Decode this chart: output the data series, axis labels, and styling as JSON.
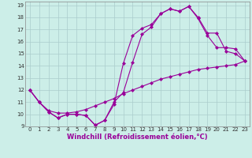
{
  "xlabel": "Windchill (Refroidissement éolien,°C)",
  "bg_color": "#cceee8",
  "grid_color": "#aacccc",
  "line_color": "#990099",
  "xlim": [
    -0.5,
    23.5
  ],
  "ylim": [
    9,
    19.3
  ],
  "xticks": [
    0,
    1,
    2,
    3,
    4,
    5,
    6,
    7,
    8,
    9,
    10,
    11,
    12,
    13,
    14,
    15,
    16,
    17,
    18,
    19,
    20,
    21,
    22,
    23
  ],
  "yticks": [
    9,
    10,
    11,
    12,
    13,
    14,
    15,
    16,
    17,
    18,
    19
  ],
  "line1_x": [
    0,
    1,
    2,
    3,
    4,
    5,
    6,
    7,
    8,
    9,
    10,
    11,
    12,
    13,
    14,
    15,
    16,
    17,
    18,
    19,
    20,
    21,
    22,
    23
  ],
  "line1_y": [
    12.0,
    11.0,
    10.2,
    9.7,
    10.0,
    10.0,
    9.9,
    9.1,
    9.5,
    11.0,
    11.8,
    14.3,
    16.6,
    17.2,
    18.3,
    18.7,
    18.5,
    18.9,
    18.0,
    16.7,
    16.7,
    15.2,
    15.0,
    14.4
  ],
  "line2_x": [
    0,
    1,
    2,
    3,
    4,
    5,
    6,
    7,
    8,
    9,
    10,
    11,
    12,
    13,
    14,
    15,
    16,
    17,
    18,
    19,
    20,
    21,
    22,
    23
  ],
  "line2_y": [
    12.0,
    11.0,
    10.2,
    9.7,
    10.0,
    10.0,
    9.9,
    9.1,
    9.5,
    10.8,
    14.2,
    16.5,
    17.1,
    17.4,
    18.3,
    18.7,
    18.5,
    18.9,
    17.9,
    16.5,
    15.5,
    15.5,
    15.4,
    14.4
  ],
  "line3_x": [
    0,
    1,
    2,
    3,
    4,
    5,
    6,
    7,
    8,
    9,
    10,
    11,
    12,
    13,
    14,
    15,
    16,
    17,
    18,
    19,
    20,
    21,
    22,
    23
  ],
  "line3_y": [
    12.0,
    11.0,
    10.3,
    10.1,
    10.1,
    10.2,
    10.4,
    10.7,
    11.0,
    11.3,
    11.7,
    12.0,
    12.3,
    12.6,
    12.9,
    13.1,
    13.3,
    13.5,
    13.7,
    13.8,
    13.9,
    14.0,
    14.1,
    14.4
  ],
  "marker_size": 2.5,
  "line_width": 0.8,
  "tick_fontsize": 5.0,
  "label_fontsize": 6.0
}
